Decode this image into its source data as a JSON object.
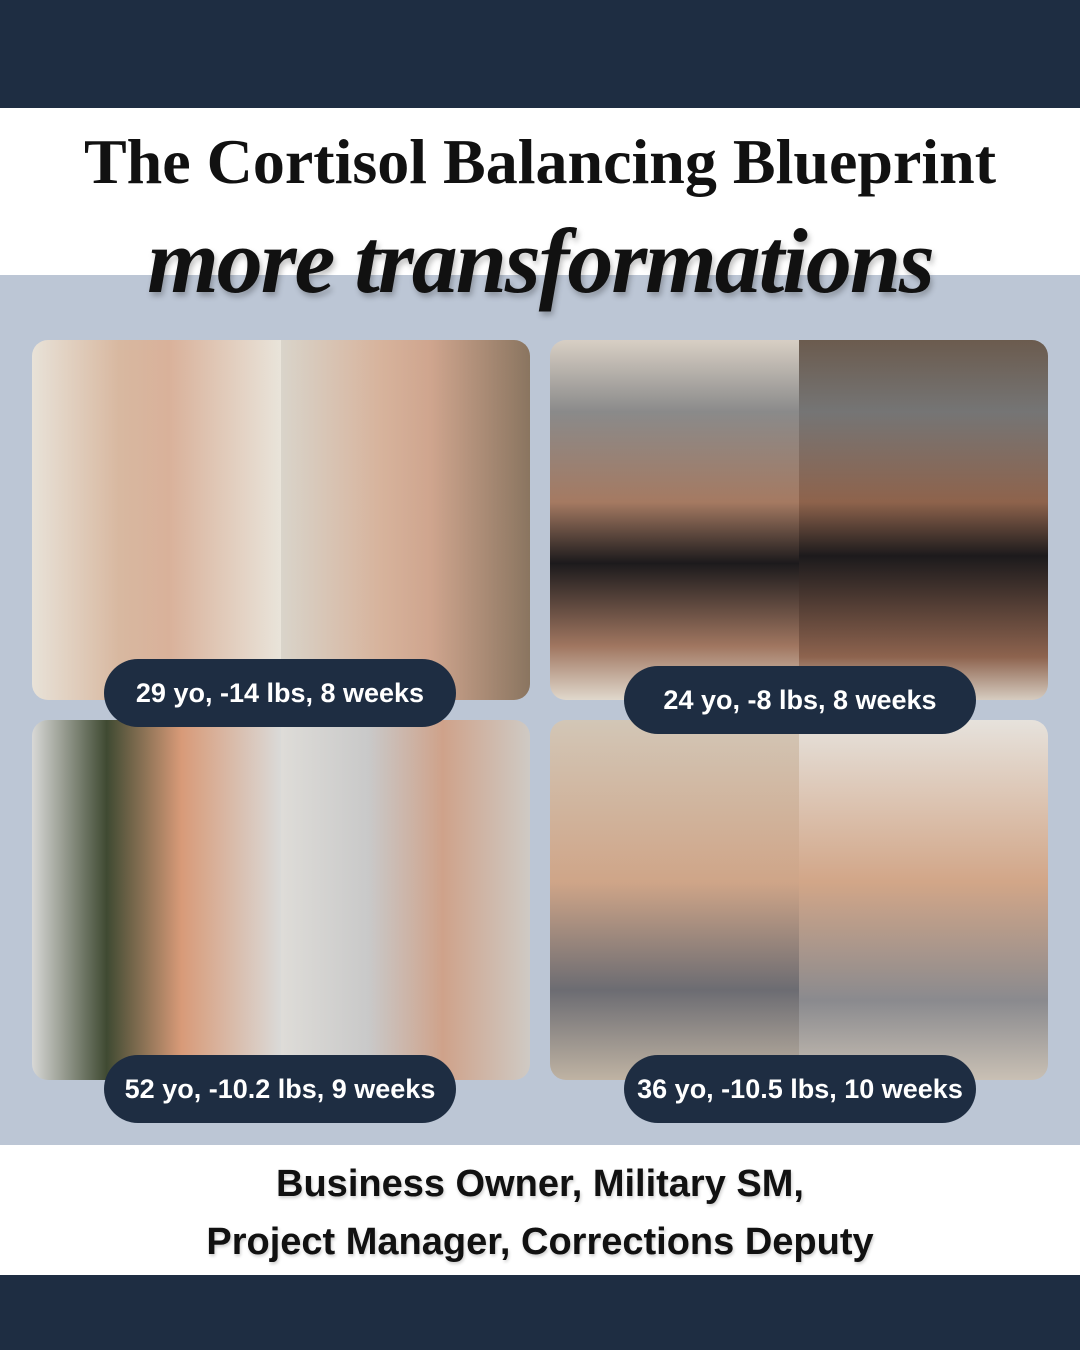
{
  "header": {
    "title": "The Cortisol Balancing Blueprint",
    "subtitle": "more transformations"
  },
  "colors": {
    "navy": "#1e2d42",
    "band": "#bcc6d5"
  },
  "results": [
    {
      "label": "29 yo, -14 lbs, 8 weeks"
    },
    {
      "label": "24 yo, -8 lbs, 8 weeks"
    },
    {
      "label": "52 yo, -10.2 lbs, 9 weeks"
    },
    {
      "label": "36 yo, -10.5 lbs, 10 weeks"
    }
  ],
  "footer": {
    "line1": "Business Owner, Military SM,",
    "line2": "Project Manager, Corrections Deputy"
  }
}
